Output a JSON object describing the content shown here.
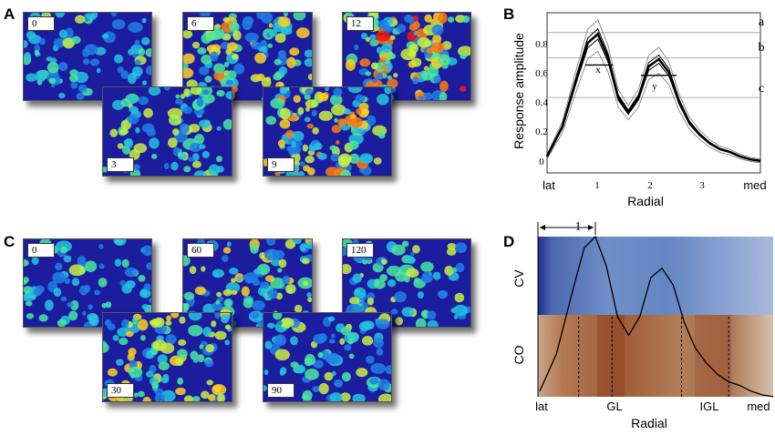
{
  "panels": {
    "A": {
      "letter": "A",
      "maps": [
        {
          "label": "0",
          "intensity": 0.25
        },
        {
          "label": "6",
          "intensity": 0.65
        },
        {
          "label": "12",
          "intensity": 0.85
        },
        {
          "label": "3",
          "intensity": 0.4
        },
        {
          "label": "9",
          "intensity": 0.8
        }
      ]
    },
    "C": {
      "letter": "C",
      "maps": [
        {
          "label": "0",
          "intensity": 0.25
        },
        {
          "label": "60",
          "intensity": 0.5
        },
        {
          "label": "120",
          "intensity": 0.35
        },
        {
          "label": "30",
          "intensity": 0.6
        },
        {
          "label": "90",
          "intensity": 0.3
        }
      ]
    },
    "B": {
      "letter": "B",
      "ylabel": "Response amplitude",
      "xlabel": "Radial",
      "x_end_labels": [
        "lat",
        "med"
      ],
      "x_ticks": [
        "1",
        "2",
        "3"
      ],
      "y_ticks": [
        "0",
        "0.2",
        "0.4",
        "0.6",
        "0.8"
      ],
      "threshold_labels": [
        "a",
        "b",
        "c"
      ],
      "width_labels": [
        "x",
        "y"
      ]
    },
    "D": {
      "letter": "D",
      "row_labels": [
        "CV",
        "CO"
      ],
      "scale_label": "1",
      "x_labels": [
        "lat",
        "GL",
        "IGL",
        "med"
      ],
      "xlabel": "Radial"
    }
  },
  "chart_data": {
    "type": "line",
    "title": "",
    "xlabel": "Radial",
    "ylabel": "Response amplitude",
    "xlim": [
      0,
      4.2
    ],
    "ylim": [
      0,
      1.0
    ],
    "series": [
      {
        "x": [
          0,
          0.3,
          0.6,
          0.8,
          1.0,
          1.2,
          1.4,
          1.6,
          1.8,
          2.0,
          2.2,
          2.4,
          2.6,
          2.8,
          3.0,
          3.2,
          3.4,
          3.6,
          3.8,
          4.0,
          4.2
        ],
        "values": [
          0.05,
          0.25,
          0.6,
          0.82,
          0.88,
          0.72,
          0.45,
          0.35,
          0.45,
          0.66,
          0.71,
          0.62,
          0.42,
          0.28,
          0.2,
          0.14,
          0.1,
          0.08,
          0.05,
          0.03,
          0.02
        ]
      }
    ],
    "thresholds": [
      0.89,
      0.72,
      0.45
    ]
  }
}
